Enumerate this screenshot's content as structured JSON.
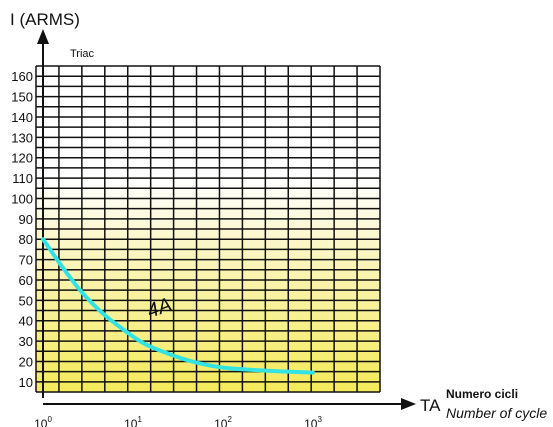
{
  "chart_data": {
    "type": "line",
    "ylabel": "I (ARMS)",
    "xlabel": "TA",
    "xlabel_it": "Numero cicli",
    "xlabel_en": "Number of cycle",
    "inner_label": "Triac",
    "x_ticks": [
      {
        "base": "10",
        "exp": "0"
      },
      {
        "base": "10",
        "exp": "1"
      },
      {
        "base": "10",
        "exp": "2"
      },
      {
        "base": "10",
        "exp": "3"
      }
    ],
    "y_ticks": [
      10,
      20,
      30,
      40,
      50,
      60,
      70,
      "80",
      "90",
      "100",
      "110",
      "120",
      "130",
      "140",
      "150",
      "160"
    ],
    "ylim": [
      5,
      165
    ],
    "xlim_decades": [
      0,
      4.2
    ],
    "grid": true,
    "series": [
      {
        "name": "4A",
        "color": "#33e3e3",
        "points": [
          {
            "x": 1,
            "y": 80
          },
          {
            "x": 1.6,
            "y": 67
          },
          {
            "x": 2.7,
            "y": 54
          },
          {
            "x": 4.5,
            "y": 44
          },
          {
            "x": 7.6,
            "y": 36
          },
          {
            "x": 13,
            "y": 29
          },
          {
            "x": 24,
            "y": 24
          },
          {
            "x": 45,
            "y": 20
          },
          {
            "x": 100,
            "y": 17
          },
          {
            "x": 300,
            "y": 15.5
          },
          {
            "x": 1000,
            "y": 14.5
          }
        ]
      }
    ],
    "colors": {
      "grid": "#111111",
      "fill_top": "#ffffff",
      "fill_bottom": "#f4ea5a",
      "curve": "#33e3e3"
    }
  }
}
